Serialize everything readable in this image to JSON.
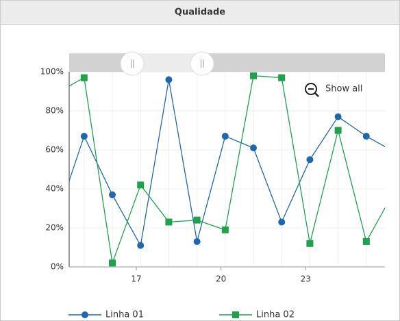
{
  "header": {
    "title": "Qualidade"
  },
  "chart_data": {
    "type": "line",
    "x": [
      14.15,
      15.15,
      16.15,
      17.15,
      18.15,
      19.15,
      20.15,
      21.15,
      22.15,
      23.15,
      24.15,
      25.15,
      26.15
    ],
    "series": [
      {
        "name": "Linha 01",
        "color": "#1f68b0",
        "marker": "circle",
        "values": [
          24,
          67,
          37,
          11,
          96,
          13,
          67,
          61,
          23,
          55,
          77,
          67,
          59
        ]
      },
      {
        "name": "Linha 02",
        "color": "#1ea34c",
        "marker": "square",
        "values": [
          89,
          97,
          2,
          42,
          23,
          24,
          19,
          98,
          97,
          12,
          70,
          13,
          39
        ]
      }
    ],
    "xlim": [
      14.62,
      25.81
    ],
    "xticks": [
      17,
      20,
      23
    ],
    "ylim": [
      0,
      100
    ],
    "yticks": [
      {
        "value": 0,
        "label": "0%"
      },
      {
        "value": 20,
        "label": "20%"
      },
      {
        "value": 40,
        "label": "40%"
      },
      {
        "value": 60,
        "label": "60%"
      },
      {
        "value": 80,
        "label": "80%"
      },
      {
        "value": 100,
        "label": "100%"
      }
    ],
    "grid": true
  },
  "zoom": {
    "label": "Show all"
  }
}
